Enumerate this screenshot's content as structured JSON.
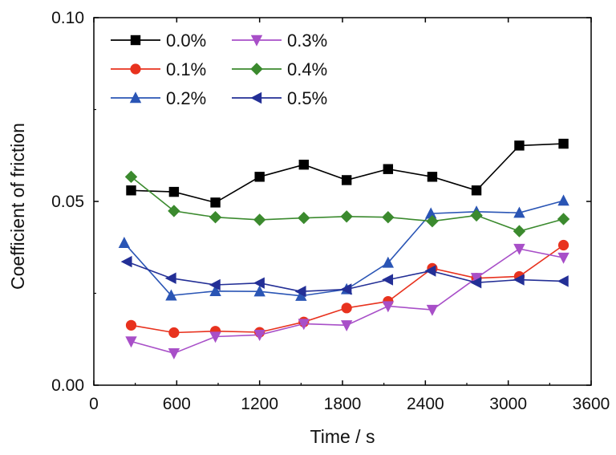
{
  "chart_data": {
    "type": "line",
    "title": "",
    "xlabel": "Time / s",
    "ylabel": "Coefficient of friction",
    "xlim": [
      0,
      3600
    ],
    "ylim": [
      0.0,
      0.1
    ],
    "x_ticks": [
      0,
      600,
      1200,
      1800,
      2400,
      3000,
      3600
    ],
    "y_ticks": [
      0.0,
      0.05,
      0.1
    ],
    "x_tick_labels": [
      "0",
      "600",
      "1200",
      "1800",
      "2400",
      "3000",
      "3600"
    ],
    "y_tick_labels": [
      "0.00",
      "0.05",
      "0.10"
    ],
    "grid": false,
    "legend_position": "top-left",
    "series": [
      {
        "name": "0.0%",
        "color": "#000000",
        "marker": "square",
        "x": [
          270,
          580,
          880,
          1200,
          1520,
          1830,
          2130,
          2450,
          2770,
          3080,
          3400
        ],
        "y": [
          0.053,
          0.0526,
          0.0497,
          0.0567,
          0.06,
          0.0558,
          0.0588,
          0.0567,
          0.053,
          0.0652,
          0.0657
        ]
      },
      {
        "name": "0.1%",
        "color": "#e8321e",
        "marker": "circle",
        "x": [
          270,
          580,
          880,
          1200,
          1520,
          1830,
          2130,
          2450,
          2770,
          3080,
          3400
        ],
        "y": [
          0.0163,
          0.0143,
          0.0147,
          0.0144,
          0.0172,
          0.021,
          0.0228,
          0.0318,
          0.0291,
          0.0296,
          0.0381
        ]
      },
      {
        "name": "0.2%",
        "color": "#2a55b5",
        "marker": "triangle-up",
        "x": [
          220,
          560,
          880,
          1200,
          1500,
          1830,
          2130,
          2440,
          2770,
          3080,
          3400
        ],
        "y": [
          0.0387,
          0.0244,
          0.0256,
          0.0255,
          0.0243,
          0.0261,
          0.0333,
          0.0467,
          0.0472,
          0.0469,
          0.0502
        ]
      },
      {
        "name": "0.3%",
        "color": "#a84fc8",
        "marker": "triangle-down",
        "x": [
          270,
          580,
          880,
          1200,
          1520,
          1830,
          2130,
          2450,
          2770,
          3080,
          3400
        ],
        "y": [
          0.0119,
          0.0087,
          0.0132,
          0.0137,
          0.0167,
          0.0163,
          0.0215,
          0.0205,
          0.0292,
          0.0371,
          0.0347
        ]
      },
      {
        "name": "0.4%",
        "color": "#3b8a2e",
        "marker": "diamond",
        "x": [
          270,
          580,
          880,
          1200,
          1520,
          1830,
          2130,
          2450,
          2770,
          3080,
          3400
        ],
        "y": [
          0.0567,
          0.0474,
          0.0457,
          0.045,
          0.0455,
          0.0459,
          0.0457,
          0.0446,
          0.0462,
          0.0419,
          0.0452
        ]
      },
      {
        "name": "0.5%",
        "color": "#232f96",
        "marker": "triangle-left",
        "x": [
          240,
          560,
          880,
          1200,
          1500,
          1830,
          2130,
          2440,
          2770,
          3080,
          3400
        ],
        "y": [
          0.0336,
          0.0291,
          0.0273,
          0.0278,
          0.0255,
          0.0261,
          0.0287,
          0.0311,
          0.0279,
          0.0287,
          0.0283
        ]
      }
    ]
  }
}
